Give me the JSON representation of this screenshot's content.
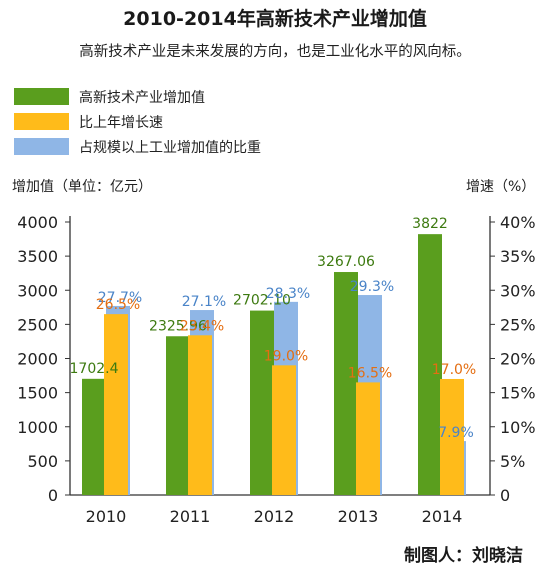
{
  "title": "2010-2014年高新技术产业增加值",
  "subtitle": "高新技术产业是未来发展的方向，也是工业化水平的风向标。",
  "credit": "制图人：刘晓洁",
  "axis_titles": {
    "left": "增加值（单位：亿元）",
    "right": "增速（%）"
  },
  "colors": {
    "green": "#5a9e1e",
    "orange": "#ffbb1a",
    "blue": "#8fb6e6",
    "blue_text": "#4a84c8",
    "orange_text": "#e46e12",
    "green_text": "#3d7a10"
  },
  "chart_data": {
    "type": "bar",
    "categories": [
      "2010",
      "2011",
      "2012",
      "2013",
      "2014"
    ],
    "series": [
      {
        "name": "高新技术产业增加值",
        "axis": "left",
        "values": [
          1702.4,
          2325.96,
          2702.1,
          3267.06,
          3822
        ],
        "labels": [
          "1702.4",
          "2325.96",
          "2702.10",
          "3267.06",
          "3822"
        ]
      },
      {
        "name": "比上年增长速",
        "axis": "right",
        "values": [
          26.5,
          23.4,
          19.0,
          16.5,
          17.0
        ],
        "labels": [
          "26.5%",
          "23.4%",
          "19.0%",
          "16.5%",
          "17.0%"
        ]
      },
      {
        "name": "占规模以上工业增加值的比重",
        "axis": "right",
        "values": [
          27.7,
          27.1,
          28.3,
          29.3,
          7.9
        ],
        "labels": [
          "27.7%",
          "27.1%",
          "28.3%",
          "29.3%",
          "7.9%"
        ]
      }
    ],
    "y_left": {
      "ticks": [
        "0",
        "500",
        "1000",
        "1500",
        "2000",
        "2500",
        "3000",
        "3500",
        "4000"
      ],
      "range": [
        0,
        4000
      ]
    },
    "y_right": {
      "ticks": [
        "0",
        "5%",
        "10%",
        "15%",
        "20%",
        "25%",
        "30%",
        "35%",
        "40%"
      ],
      "range": [
        0,
        40
      ]
    },
    "grid": false,
    "legend_position": "top-left"
  }
}
